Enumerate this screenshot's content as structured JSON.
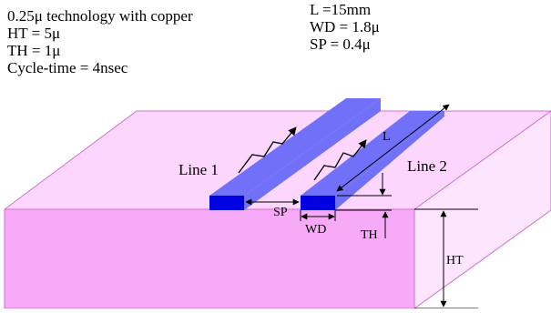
{
  "specs": {
    "left": [
      "0.25μ technology with copper",
      "HT = 5μ",
      "TH = 1μ",
      "Cycle-time = 4nsec"
    ],
    "right": [
      "L =15mm",
      "WD = 1.8μ",
      "SP = 0.4μ"
    ]
  },
  "labels": {
    "line1": "Line 1",
    "line2": "Line 2",
    "length": "L",
    "spacing": "SP",
    "width": "WD",
    "thickness": "TH",
    "height": "HT"
  },
  "colors": {
    "substrate_front": "#f7aaf7",
    "substrate_top": "#fcd6fc",
    "substrate_side": "#fde6fd",
    "substrate_edge": "#d070d0",
    "wire_top": "#7070f8",
    "wire_front": "#0000e0"
  }
}
